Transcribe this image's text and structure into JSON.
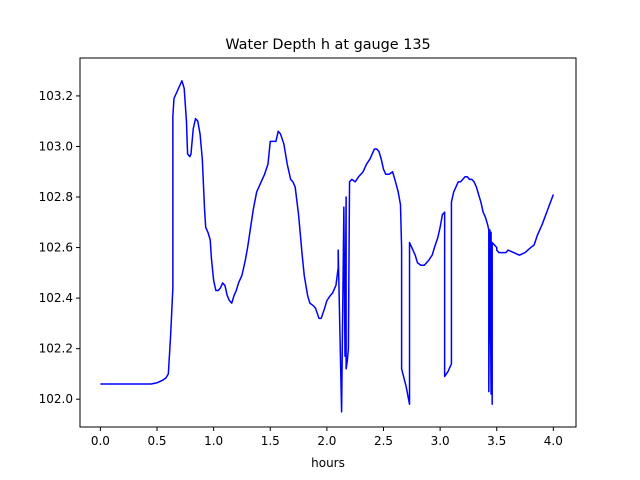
{
  "chart_data": {
    "type": "line",
    "title": "Water Depth h at gauge 135",
    "xlabel": "hours",
    "ylabel": "",
    "xlim": [
      -0.18,
      4.2
    ],
    "ylim": [
      101.89,
      103.35
    ],
    "xticks": [
      0.0,
      0.5,
      1.0,
      1.5,
      2.0,
      2.5,
      3.0,
      3.5,
      4.0
    ],
    "xtick_labels": [
      "0.0",
      "0.5",
      "1.0",
      "1.5",
      "2.0",
      "2.5",
      "3.0",
      "3.5",
      "4.0"
    ],
    "yticks": [
      102.0,
      102.2,
      102.4,
      102.6,
      102.8,
      103.0,
      103.2
    ],
    "ytick_labels": [
      "102.0",
      "102.2",
      "102.4",
      "102.6",
      "102.8",
      "103.0",
      "103.2"
    ],
    "grid": false,
    "series": [
      {
        "color": "#0000ff",
        "x": [
          0.0,
          0.1,
          0.2,
          0.3,
          0.4,
          0.45,
          0.5,
          0.55,
          0.58,
          0.6,
          0.62,
          0.64,
          0.64,
          0.65,
          0.67,
          0.7,
          0.72,
          0.74,
          0.76,
          0.77,
          0.79,
          0.8,
          0.82,
          0.84,
          0.86,
          0.88,
          0.9,
          0.92,
          0.93,
          0.95,
          0.97,
          0.98,
          1.0,
          1.02,
          1.04,
          1.06,
          1.08,
          1.1,
          1.12,
          1.14,
          1.16,
          1.18,
          1.2,
          1.22,
          1.25,
          1.28,
          1.3,
          1.32,
          1.35,
          1.38,
          1.4,
          1.43,
          1.45,
          1.48,
          1.5,
          1.52,
          1.55,
          1.57,
          1.59,
          1.62,
          1.65,
          1.68,
          1.7,
          1.72,
          1.75,
          1.78,
          1.8,
          1.83,
          1.85,
          1.88,
          1.9,
          1.93,
          1.95,
          1.98,
          2.0,
          2.03,
          2.05,
          2.08,
          2.1,
          2.1,
          2.13,
          2.14,
          2.15,
          2.16,
          2.17,
          2.17,
          2.18,
          2.19,
          2.2,
          2.2,
          2.22,
          2.25,
          2.28,
          2.3,
          2.32,
          2.35,
          2.38,
          2.4,
          2.42,
          2.44,
          2.46,
          2.48,
          2.5,
          2.52,
          2.55,
          2.58,
          2.6,
          2.63,
          2.65,
          2.66,
          2.66,
          2.7,
          2.73,
          2.73,
          2.75,
          2.78,
          2.8,
          2.83,
          2.86,
          2.88,
          2.9,
          2.93,
          2.95,
          2.98,
          3.0,
          3.02,
          3.04,
          3.04,
          3.07,
          3.1,
          3.1,
          3.12,
          3.14,
          3.16,
          3.18,
          3.2,
          3.22,
          3.24,
          3.26,
          3.28,
          3.3,
          3.32,
          3.34,
          3.36,
          3.38,
          3.4,
          3.42,
          3.43,
          3.43,
          3.44,
          3.45,
          3.45,
          3.46,
          3.46,
          3.48,
          3.5,
          3.5,
          3.52,
          3.55,
          3.58,
          3.6,
          3.65,
          3.7,
          3.75,
          3.8,
          3.83,
          3.86,
          3.9,
          3.95,
          4.0
        ],
        "values": [
          102.06,
          102.06,
          102.06,
          102.06,
          102.06,
          102.06,
          102.065,
          102.075,
          102.085,
          102.1,
          102.25,
          102.44,
          103.12,
          103.19,
          103.21,
          103.24,
          103.26,
          103.23,
          103.1,
          102.97,
          102.96,
          102.97,
          103.07,
          103.11,
          103.1,
          103.05,
          102.95,
          102.75,
          102.68,
          102.66,
          102.63,
          102.56,
          102.47,
          102.43,
          102.43,
          102.44,
          102.46,
          102.45,
          102.41,
          102.39,
          102.38,
          102.41,
          102.43,
          102.46,
          102.49,
          102.55,
          102.6,
          102.66,
          102.75,
          102.82,
          102.84,
          102.87,
          102.89,
          102.93,
          103.02,
          103.02,
          103.02,
          103.06,
          103.05,
          103.01,
          102.93,
          102.87,
          102.86,
          102.84,
          102.73,
          102.58,
          102.49,
          102.41,
          102.38,
          102.37,
          102.36,
          102.32,
          102.32,
          102.36,
          102.39,
          102.41,
          102.42,
          102.45,
          102.52,
          102.59,
          101.95,
          102.35,
          102.76,
          102.17,
          102.8,
          102.12,
          102.15,
          102.2,
          102.85,
          102.86,
          102.87,
          102.86,
          102.88,
          102.89,
          102.9,
          102.93,
          102.95,
          102.97,
          102.99,
          102.99,
          102.98,
          102.95,
          102.91,
          102.89,
          102.89,
          102.9,
          102.87,
          102.82,
          102.77,
          102.6,
          102.12,
          102.05,
          101.98,
          102.62,
          102.6,
          102.57,
          102.54,
          102.53,
          102.53,
          102.54,
          102.55,
          102.57,
          102.6,
          102.64,
          102.68,
          102.73,
          102.74,
          102.09,
          102.11,
          102.14,
          102.78,
          102.82,
          102.84,
          102.86,
          102.86,
          102.87,
          102.88,
          102.88,
          102.87,
          102.87,
          102.86,
          102.84,
          102.81,
          102.78,
          102.74,
          102.72,
          102.69,
          102.67,
          102.03,
          102.67,
          102.02,
          102.66,
          101.98,
          102.62,
          102.61,
          102.6,
          102.59,
          102.58,
          102.58,
          102.58,
          102.59,
          102.58,
          102.57,
          102.58,
          102.6,
          102.61,
          102.65,
          102.69,
          102.75,
          102.81
        ],
        "values_comment": ""
      }
    ]
  }
}
